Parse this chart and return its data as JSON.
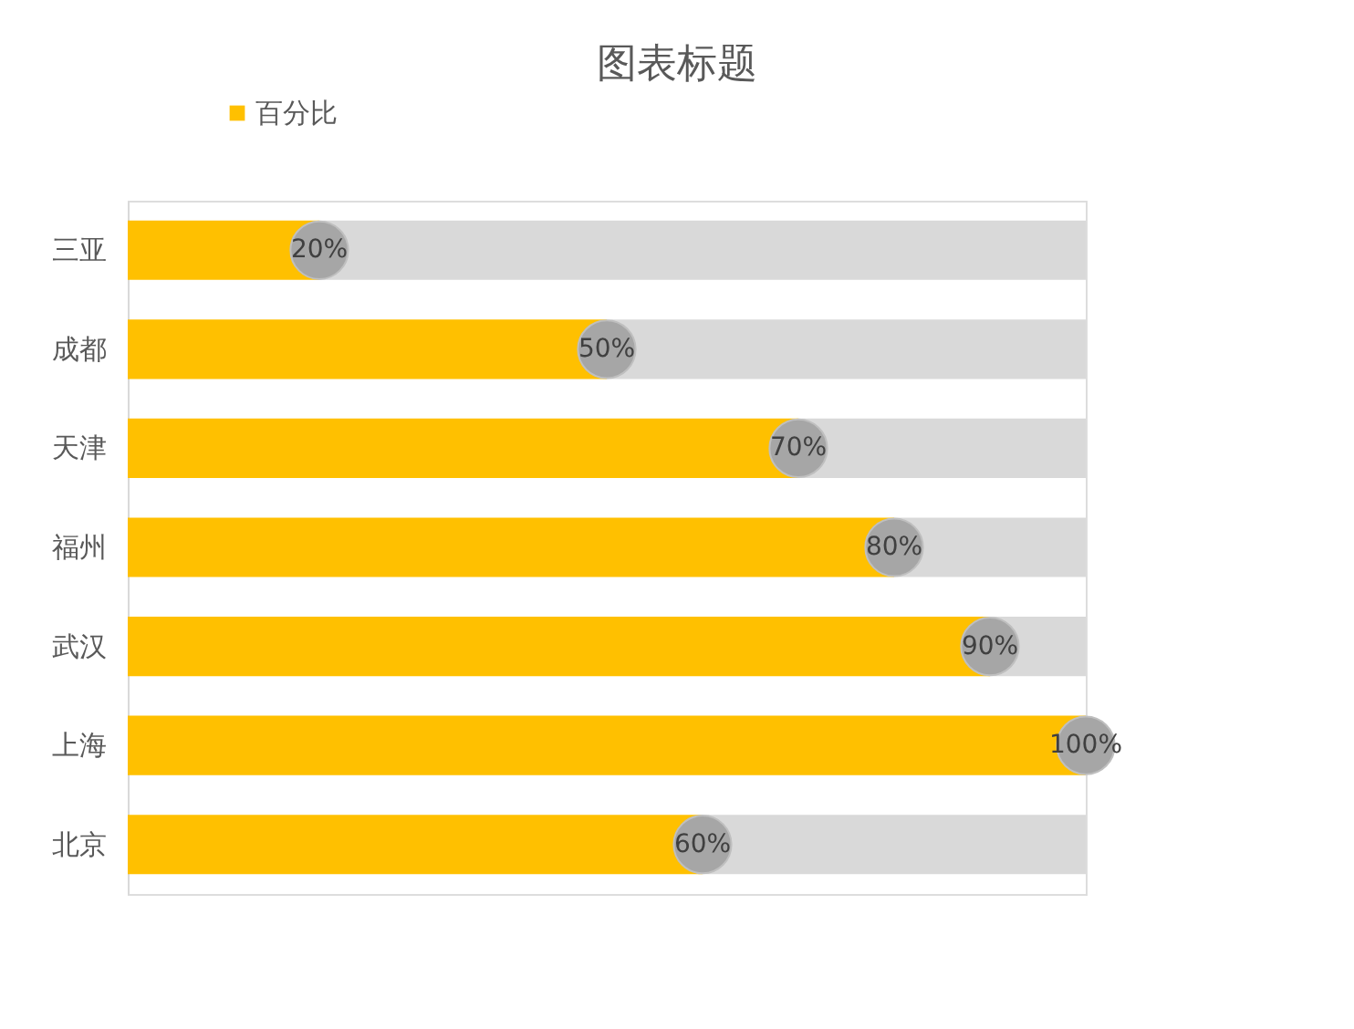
{
  "chart_data": {
    "type": "bar",
    "title": "图表标题",
    "orientation": "horizontal",
    "stacked": true,
    "categories": [
      "三亚",
      "成都",
      "天津",
      "福州",
      "武汉",
      "上海",
      "北京"
    ],
    "series": [
      {
        "name": "百分比",
        "color": "#ffc000",
        "values": [
          20,
          50,
          70,
          80,
          90,
          100,
          60
        ]
      },
      {
        "color": "#d9d9d9",
        "values": [
          80,
          50,
          30,
          20,
          10,
          0,
          40
        ]
      },
      {
        "type": "scatter",
        "color": "#a6a6a6",
        "values": [
          20,
          50,
          70,
          80,
          90,
          100,
          60
        ],
        "value_labels": [
          "20%",
          "50%",
          "70%",
          "80%",
          "90%",
          "100%",
          "60%"
        ]
      }
    ],
    "xlim": [
      0,
      100
    ],
    "tick_labels": "y",
    "legend": "top"
  }
}
